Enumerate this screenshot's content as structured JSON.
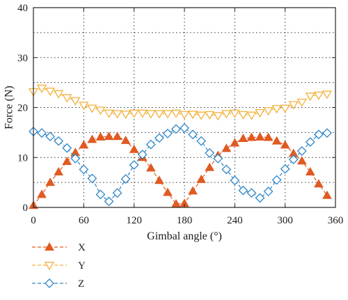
{
  "chart_data": {
    "type": "line",
    "xlabel": "Gimbal angle (°)",
    "ylabel": "Force (N)",
    "xlim": [
      0,
      360
    ],
    "ylim": [
      0,
      40
    ],
    "xticks": [
      0,
      60,
      120,
      180,
      240,
      300,
      360
    ],
    "yticks": [
      0,
      10,
      20,
      30,
      40
    ],
    "grid": "dotted",
    "legend_position": "bottom-left",
    "x": [
      0,
      10,
      20,
      30,
      40,
      50,
      60,
      70,
      80,
      90,
      100,
      110,
      120,
      130,
      140,
      150,
      160,
      170,
      180,
      190,
      200,
      210,
      220,
      230,
      240,
      250,
      260,
      270,
      280,
      290,
      300,
      310,
      320,
      330,
      340,
      350
    ],
    "series": [
      {
        "name": "X",
        "marker": "triangle-up",
        "color": "#e05a22",
        "values": [
          0.4,
          2.6,
          5.0,
          7.1,
          9.2,
          11.0,
          12.5,
          13.6,
          14.1,
          14.2,
          14.2,
          13.4,
          11.6,
          10.0,
          7.9,
          5.4,
          3.0,
          0.7,
          0.8,
          3.3,
          5.6,
          8.0,
          10.4,
          11.8,
          12.9,
          13.8,
          14.0,
          14.1,
          14.0,
          13.3,
          12.5,
          10.8,
          9.3,
          7.1,
          4.7,
          2.4
        ]
      },
      {
        "name": "Y",
        "marker": "triangle-down",
        "color": "#f2b23c",
        "values": [
          23.2,
          23.9,
          23.3,
          22.8,
          22.0,
          21.4,
          20.5,
          19.9,
          19.5,
          18.9,
          18.8,
          18.7,
          18.9,
          18.9,
          18.8,
          18.8,
          18.8,
          18.9,
          18.6,
          18.7,
          18.5,
          18.6,
          18.4,
          18.8,
          18.9,
          18.6,
          18.5,
          19.0,
          19.4,
          19.8,
          19.9,
          20.6,
          21.1,
          22.3,
          22.5,
          22.7
        ]
      },
      {
        "name": "Z",
        "marker": "diamond",
        "color": "#2e86c8",
        "values": [
          15.2,
          14.9,
          14.2,
          13.3,
          11.9,
          9.8,
          7.6,
          5.8,
          2.6,
          1.2,
          2.9,
          5.7,
          8.5,
          10.6,
          12.6,
          13.9,
          14.8,
          15.7,
          15.9,
          14.6,
          13.3,
          10.9,
          9.8,
          7.6,
          5.4,
          3.4,
          2.9,
          1.9,
          3.2,
          5.5,
          7.7,
          9.6,
          11.3,
          13.1,
          14.6,
          14.9
        ]
      }
    ]
  }
}
